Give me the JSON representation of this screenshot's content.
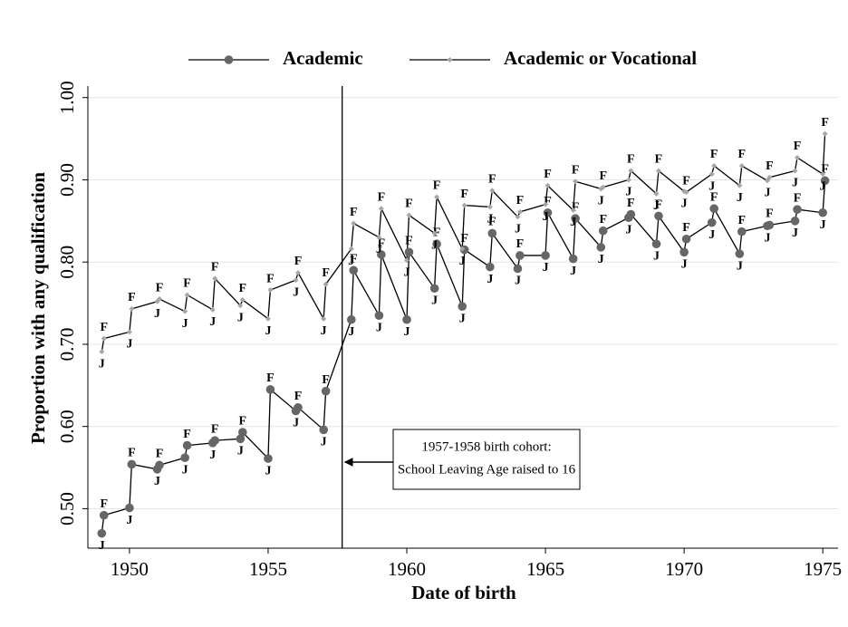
{
  "chart_data": {
    "type": "line",
    "title": null,
    "x_label": "Date of birth",
    "y_label": "Proportion with any qualification",
    "x": [
      1949,
      1949.08,
      1950,
      1950.08,
      1951,
      1951.08,
      1952,
      1952.08,
      1953,
      1953.08,
      1954,
      1954.08,
      1955,
      1955.08,
      1956,
      1956.08,
      1957,
      1957.08,
      1958,
      1958.08,
      1959,
      1959.08,
      1960,
      1960.08,
      1961,
      1961.08,
      1962,
      1962.08,
      1963,
      1963.08,
      1964,
      1964.08,
      1965,
      1965.08,
      1966,
      1966.08,
      1967,
      1967.08,
      1968,
      1968.08,
      1969,
      1969.08,
      1970,
      1970.08,
      1971,
      1971.08,
      1972,
      1972.08,
      1973,
      1973.08,
      1974,
      1974.08,
      1975,
      1975.08
    ],
    "point_labels": [
      "J",
      "F",
      "J",
      "F",
      "J",
      "F",
      "J",
      "F",
      "J",
      "F",
      "J",
      "F",
      "J",
      "F",
      "J",
      "F",
      "J",
      "F",
      "J",
      "F",
      "J",
      "F",
      "J",
      "F",
      "J",
      "F",
      "J",
      "F",
      "J",
      "F",
      "J",
      "F",
      "J",
      "F",
      "J",
      "F",
      "J",
      "F",
      "J",
      "F",
      "J",
      "F",
      "J",
      "F",
      "J",
      "F",
      "J",
      "F",
      "J",
      "F",
      "J",
      "F",
      "J",
      "F"
    ],
    "series": [
      {
        "name": "Academic",
        "color": "#666666",
        "line_color": "#000000",
        "marker": "circle",
        "values": [
          0.47,
          0.492,
          0.501,
          0.554,
          0.548,
          0.553,
          0.562,
          0.577,
          0.58,
          0.583,
          0.585,
          0.593,
          0.561,
          0.645,
          0.619,
          0.623,
          0.596,
          0.643,
          0.73,
          0.79,
          0.735,
          0.809,
          0.73,
          0.812,
          0.768,
          0.822,
          0.746,
          0.815,
          0.794,
          0.835,
          0.792,
          0.808,
          0.808,
          0.86,
          0.804,
          0.853,
          0.818,
          0.838,
          0.854,
          0.858,
          0.822,
          0.856,
          0.812,
          0.828,
          0.848,
          0.865,
          0.81,
          0.837,
          0.844,
          0.845,
          0.85,
          0.864,
          0.86,
          0.899
        ]
      },
      {
        "name": "Academic or Vocational",
        "color": "#a6a6a6",
        "line_color": "#000000",
        "marker": "diamond",
        "values": [
          0.691,
          0.707,
          0.715,
          0.743,
          0.752,
          0.755,
          0.74,
          0.76,
          0.742,
          0.78,
          0.747,
          0.754,
          0.731,
          0.766,
          0.778,
          0.787,
          0.731,
          0.773,
          0.816,
          0.847,
          0.83,
          0.865,
          0.802,
          0.857,
          0.835,
          0.879,
          0.816,
          0.869,
          0.867,
          0.887,
          0.855,
          0.861,
          0.87,
          0.893,
          0.863,
          0.898,
          0.889,
          0.891,
          0.9,
          0.911,
          0.883,
          0.911,
          0.886,
          0.885,
          0.907,
          0.917,
          0.893,
          0.917,
          0.899,
          0.903,
          0.911,
          0.927,
          0.907,
          0.956
        ]
      }
    ],
    "xlim": [
      1948.5,
      1975.55
    ],
    "ylim": [
      0.452,
      1.014
    ],
    "xticks": [
      1950,
      1955,
      1960,
      1965,
      1970,
      1975
    ],
    "yticks": [
      {
        "value": 0.5,
        "label": "0.50"
      },
      {
        "value": 0.6,
        "label": "0.60"
      },
      {
        "value": 0.7,
        "label": "0.70"
      },
      {
        "value": 0.8,
        "label": "0.80"
      },
      {
        "value": 0.9,
        "label": "0.90"
      },
      {
        "value": 1.0,
        "label": "1.00"
      }
    ],
    "grid": true,
    "legend": "top",
    "reference_line_x": 1957.67,
    "annotation": [
      "1957-1958 birth cohort:",
      "School Leaving Age raised to 16"
    ]
  }
}
